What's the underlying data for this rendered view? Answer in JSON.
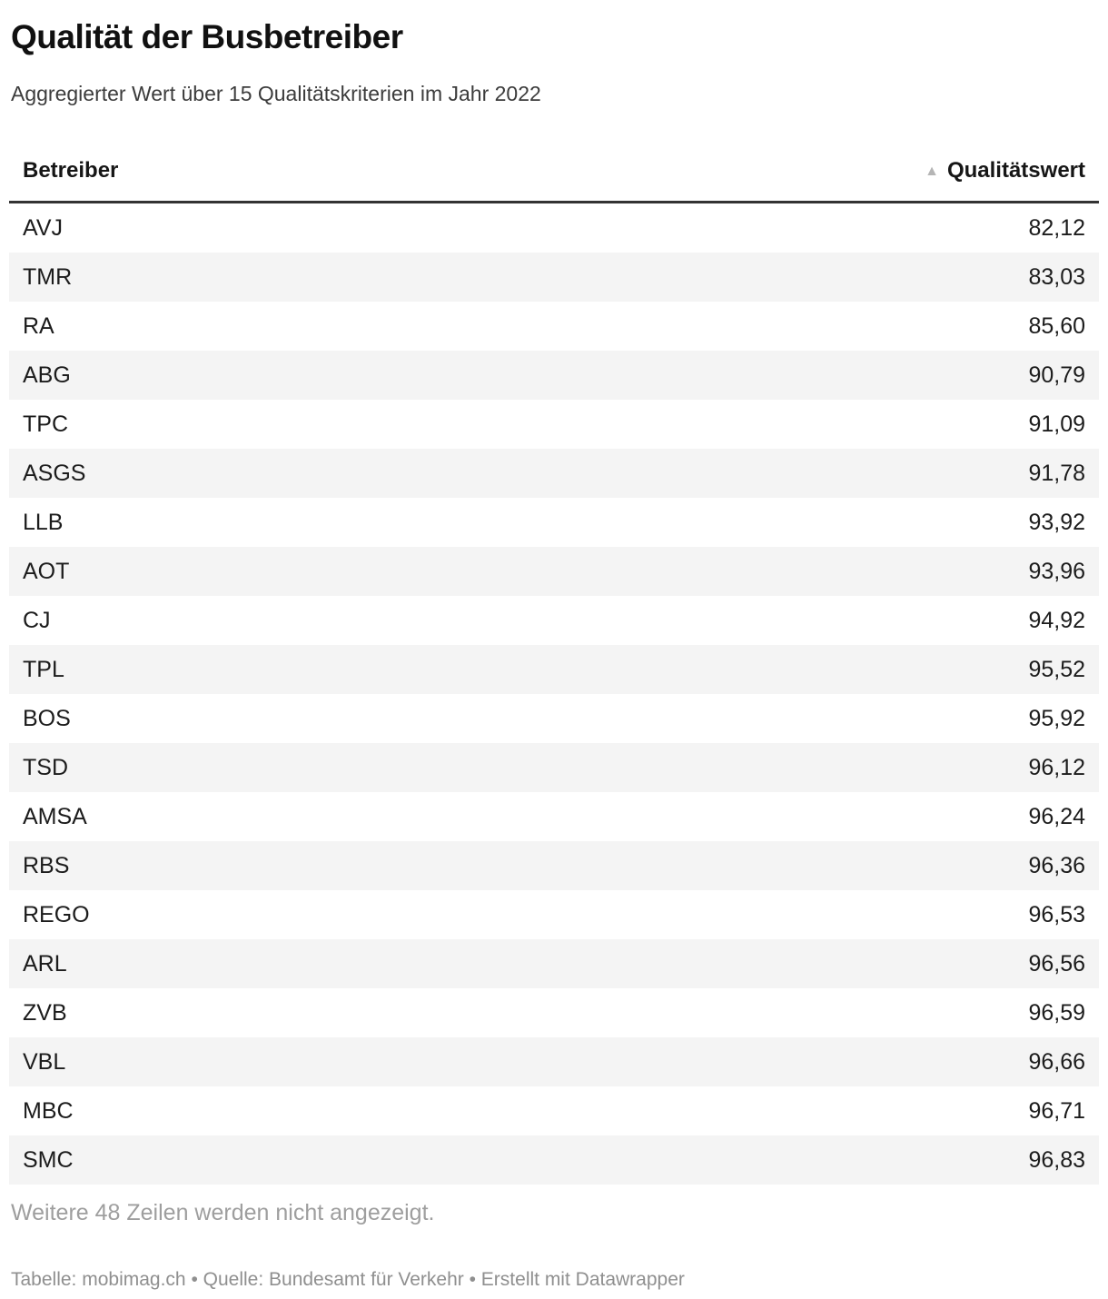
{
  "title": "Qualität der Busbetreiber",
  "subtitle": "Aggregierter Wert über 15 Qualitätskriterien im Jahr 2022",
  "table": {
    "columns": [
      {
        "label": "Betreiber",
        "align": "left"
      },
      {
        "label": "Qualitätswert",
        "align": "right",
        "sort_icon": "▲",
        "sorted": "ascending"
      }
    ],
    "rows": [
      {
        "operator": "AVJ",
        "value": "82,12"
      },
      {
        "operator": "TMR",
        "value": "83,03"
      },
      {
        "operator": "RA",
        "value": "85,60"
      },
      {
        "operator": "ABG",
        "value": "90,79"
      },
      {
        "operator": "TPC",
        "value": "91,09"
      },
      {
        "operator": "ASGS",
        "value": "91,78"
      },
      {
        "operator": "LLB",
        "value": "93,92"
      },
      {
        "operator": "AOT",
        "value": "93,96"
      },
      {
        "operator": "CJ",
        "value": "94,92"
      },
      {
        "operator": "TPL",
        "value": "95,52"
      },
      {
        "operator": "BOS",
        "value": "95,92"
      },
      {
        "operator": "TSD",
        "value": "96,12"
      },
      {
        "operator": "AMSA",
        "value": "96,24"
      },
      {
        "operator": "RBS",
        "value": "96,36"
      },
      {
        "operator": "REGO",
        "value": "96,53"
      },
      {
        "operator": "ARL",
        "value": "96,56"
      },
      {
        "operator": "ZVB",
        "value": "96,59"
      },
      {
        "operator": "VBL",
        "value": "96,66"
      },
      {
        "operator": "MBC",
        "value": "96,71"
      },
      {
        "operator": "SMC",
        "value": "96,83"
      }
    ]
  },
  "footer": {
    "more_rows_note": "Weitere 48 Zeilen werden nicht angezeigt.",
    "attribution_parts": [
      {
        "text": "Tabelle: ",
        "link": false
      },
      {
        "text": "mobimag.ch",
        "link": true
      },
      {
        "text": " • Quelle: Bundesamt für Verkehr • Erstellt mit ",
        "link": false
      },
      {
        "text": "Datawrapper",
        "link": true
      }
    ]
  },
  "colors": {
    "text": "#1a1a1a",
    "subtitle": "#3c3c3c",
    "alt_row_background": "#f4f4f4",
    "header_border": "#333333",
    "sort_icon": "#b5b5b5",
    "note": "#9e9e9e",
    "attribution": "#8f8f8f"
  },
  "chart_data": {
    "type": "table",
    "title": "Qualität der Busbetreiber",
    "subtitle": "Aggregierter Wert über 15 Qualitätskriterien im Jahr 2022",
    "columns": [
      "Betreiber",
      "Qualitätswert"
    ],
    "rows": [
      [
        "AVJ",
        82.12
      ],
      [
        "TMR",
        83.03
      ],
      [
        "RA",
        85.6
      ],
      [
        "ABG",
        90.79
      ],
      [
        "TPC",
        91.09
      ],
      [
        "ASGS",
        91.78
      ],
      [
        "LLB",
        93.92
      ],
      [
        "AOT",
        93.96
      ],
      [
        "CJ",
        94.92
      ],
      [
        "TPL",
        95.52
      ],
      [
        "BOS",
        95.92
      ],
      [
        "TSD",
        96.12
      ],
      [
        "AMSA",
        96.24
      ],
      [
        "RBS",
        96.36
      ],
      [
        "REGO",
        96.53
      ],
      [
        "ARL",
        96.56
      ],
      [
        "ZVB",
        96.59
      ],
      [
        "VBL",
        96.66
      ],
      [
        "MBC",
        96.71
      ],
      [
        "SMC",
        96.83
      ]
    ],
    "sort": "Qualitätswert ascending",
    "hidden_rows_note": "Weitere 48 Zeilen werden nicht angezeigt.",
    "stripes": true,
    "legend_position": "none"
  }
}
